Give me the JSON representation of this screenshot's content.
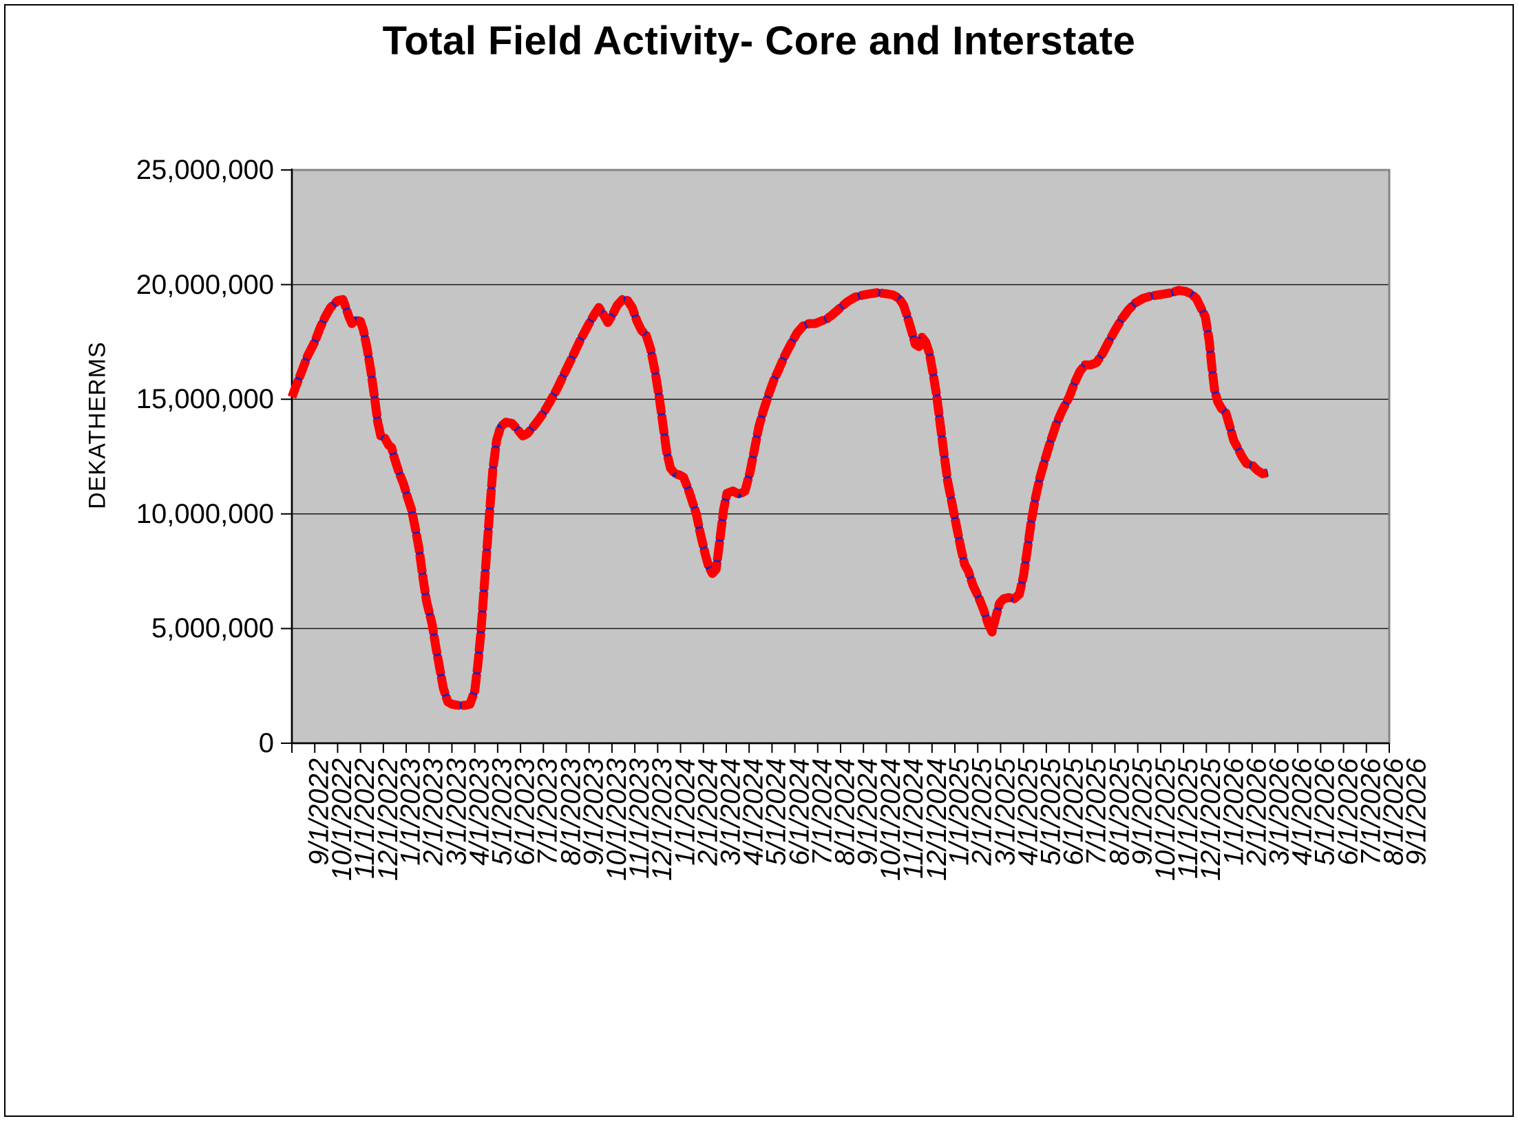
{
  "chart_data": {
    "type": "line",
    "title": "Total Field Activity- Core and Interstate",
    "ylabel": "DEKATHERMS",
    "xlabel": "",
    "ylim": [
      0,
      25000000
    ],
    "grid": true,
    "legend": "none",
    "plot_bg_color": "#c5c5c5",
    "gridline_color": "#1a1a1a",
    "y_ticks": {
      "values": [
        0,
        5000000,
        10000000,
        15000000,
        20000000,
        25000000
      ],
      "labels": [
        "0",
        "5,000,000",
        "10,000,000",
        "15,000,000",
        "20,000,000",
        "25,000,000"
      ]
    },
    "x_ticks": {
      "labels": [
        "9/1/2022",
        "10/1/2022",
        "11/1/2022",
        "12/1/2022",
        "1/1/2023",
        "2/1/2023",
        "3/1/2023",
        "4/1/2023",
        "5/1/2023",
        "6/1/2023",
        "7/1/2023",
        "8/1/2023",
        "9/1/2023",
        "10/1/2023",
        "11/1/2023",
        "12/1/2023",
        "1/1/2024",
        "2/1/2024",
        "3/1/2024",
        "4/1/2024",
        "5/1/2024",
        "6/1/2024",
        "7/1/2024",
        "8/1/2024",
        "9/1/2024",
        "10/1/2024",
        "11/1/2024",
        "12/1/2024",
        "1/1/2025",
        "2/1/2025",
        "3/1/2025",
        "4/1/2025",
        "5/1/2025",
        "6/1/2025",
        "7/1/2025",
        "8/1/2025",
        "9/1/2025",
        "10/1/2025",
        "11/1/2025",
        "12/1/2025",
        "1/1/2026",
        "2/1/2026",
        "3/1/2026",
        "4/1/2026",
        "5/1/2026",
        "6/1/2026",
        "7/1/2026",
        "8/1/2026",
        "9/1/2026"
      ]
    },
    "series": [
      {
        "name": "total-field-activity",
        "line_color": "#ff0000",
        "underlay_color": "#2222b2",
        "style": "thick red line with navy dashed underlay showing through",
        "points": [
          [
            "9/1/2022",
            15100000
          ],
          [
            "9/8/2022",
            15700000
          ],
          [
            "9/15/2022",
            16300000
          ],
          [
            "9/22/2022",
            16900000
          ],
          [
            "10/1/2022",
            17500000
          ],
          [
            "10/8/2022",
            18100000
          ],
          [
            "10/15/2022",
            18600000
          ],
          [
            "10/22/2022",
            19000000
          ],
          [
            "11/1/2022",
            19300000
          ],
          [
            "11/8/2022",
            19350000
          ],
          [
            "11/12/2022",
            19000000
          ],
          [
            "11/16/2022",
            18600000
          ],
          [
            "11/20/2022",
            18300000
          ],
          [
            "11/25/2022",
            18450000
          ],
          [
            "12/1/2022",
            18400000
          ],
          [
            "12/5/2022",
            18000000
          ],
          [
            "12/10/2022",
            17200000
          ],
          [
            "12/15/2022",
            16200000
          ],
          [
            "12/20/2022",
            15000000
          ],
          [
            "12/24/2022",
            14000000
          ],
          [
            "12/28/2022",
            13400000
          ],
          [
            "1/3/2023",
            13300000
          ],
          [
            "1/8/2023",
            13000000
          ],
          [
            "1/12/2023",
            12900000
          ],
          [
            "1/16/2023",
            12400000
          ],
          [
            "1/22/2023",
            11800000
          ],
          [
            "1/28/2023",
            11300000
          ],
          [
            "2/3/2023",
            10700000
          ],
          [
            "2/8/2023",
            10200000
          ],
          [
            "2/13/2023",
            9400000
          ],
          [
            "2/18/2023",
            8500000
          ],
          [
            "2/23/2023",
            7300000
          ],
          [
            "2/28/2023",
            6200000
          ],
          [
            "3/5/2023",
            5200000
          ],
          [
            "3/10/2023",
            4200000
          ],
          [
            "3/15/2023",
            3300000
          ],
          [
            "3/20/2023",
            2400000
          ],
          [
            "3/26/2023",
            1800000
          ],
          [
            "4/1/2023",
            1700000
          ],
          [
            "4/10/2023",
            1650000
          ],
          [
            "4/18/2023",
            1650000
          ],
          [
            "4/25/2023",
            1700000
          ],
          [
            "5/1/2023",
            2300000
          ],
          [
            "5/5/2023",
            3400000
          ],
          [
            "5/9/2023",
            4800000
          ],
          [
            "5/13/2023",
            6600000
          ],
          [
            "5/17/2023",
            8400000
          ],
          [
            "5/21/2023",
            10200000
          ],
          [
            "5/25/2023",
            11900000
          ],
          [
            "5/30/2023",
            13200000
          ],
          [
            "6/5/2023",
            13800000
          ],
          [
            "6/12/2023",
            14000000
          ],
          [
            "6/20/2023",
            13950000
          ],
          [
            "6/27/2023",
            13700000
          ],
          [
            "7/4/2023",
            13400000
          ],
          [
            "7/10/2023",
            13500000
          ],
          [
            "7/18/2023",
            13800000
          ],
          [
            "7/25/2023",
            14100000
          ],
          [
            "8/1/2023",
            14400000
          ],
          [
            "8/10/2023",
            14900000
          ],
          [
            "8/20/2023",
            15500000
          ],
          [
            "9/1/2023",
            16300000
          ],
          [
            "9/10/2023",
            16900000
          ],
          [
            "9/20/2023",
            17600000
          ],
          [
            "10/1/2023",
            18300000
          ],
          [
            "10/8/2023",
            18700000
          ],
          [
            "10/14/2023",
            19000000
          ],
          [
            "10/20/2023",
            18700000
          ],
          [
            "10/26/2023",
            18350000
          ],
          [
            "11/2/2023",
            18700000
          ],
          [
            "11/8/2023",
            19100000
          ],
          [
            "11/15/2023",
            19350000
          ],
          [
            "11/22/2023",
            19300000
          ],
          [
            "11/28/2023",
            19000000
          ],
          [
            "12/4/2023",
            18400000
          ],
          [
            "12/10/2023",
            18000000
          ],
          [
            "12/16/2023",
            17800000
          ],
          [
            "12/22/2023",
            17200000
          ],
          [
            "12/28/2023",
            16200000
          ],
          [
            "1/3/2024",
            15100000
          ],
          [
            "1/8/2024",
            13900000
          ],
          [
            "1/13/2024",
            12700000
          ],
          [
            "1/18/2024",
            12000000
          ],
          [
            "1/24/2024",
            11750000
          ],
          [
            "1/30/2024",
            11700000
          ],
          [
            "2/5/2024",
            11600000
          ],
          [
            "2/11/2024",
            11100000
          ],
          [
            "2/17/2024",
            10500000
          ],
          [
            "2/22/2024",
            10000000
          ],
          [
            "2/27/2024",
            9200000
          ],
          [
            "3/3/2024",
            8300000
          ],
          [
            "3/8/2024",
            7700000
          ],
          [
            "3/13/2024",
            7400000
          ],
          [
            "3/18/2024",
            7600000
          ],
          [
            "3/23/2024",
            8900000
          ],
          [
            "3/28/2024",
            10200000
          ],
          [
            "4/2/2024",
            10900000
          ],
          [
            "4/10/2024",
            11000000
          ],
          [
            "4/18/2024",
            10850000
          ],
          [
            "4/26/2024",
            11000000
          ],
          [
            "5/2/2024",
            11800000
          ],
          [
            "5/8/2024",
            12800000
          ],
          [
            "5/14/2024",
            13800000
          ],
          [
            "5/20/2024",
            14500000
          ],
          [
            "5/27/2024",
            15200000
          ],
          [
            "6/3/2024",
            15800000
          ],
          [
            "6/10/2024",
            16300000
          ],
          [
            "6/18/2024",
            16900000
          ],
          [
            "6/26/2024",
            17400000
          ],
          [
            "7/4/2024",
            17900000
          ],
          [
            "7/12/2024",
            18200000
          ],
          [
            "7/20/2024",
            18300000
          ],
          [
            "7/28/2024",
            18300000
          ],
          [
            "8/5/2024",
            18400000
          ],
          [
            "8/13/2024",
            18500000
          ],
          [
            "8/21/2024",
            18700000
          ],
          [
            "9/1/2024",
            19000000
          ],
          [
            "9/10/2024",
            19250000
          ],
          [
            "9/20/2024",
            19450000
          ],
          [
            "10/1/2024",
            19550000
          ],
          [
            "10/10/2024",
            19600000
          ],
          [
            "10/20/2024",
            19650000
          ],
          [
            "11/1/2024",
            19600000
          ],
          [
            "11/10/2024",
            19550000
          ],
          [
            "11/18/2024",
            19400000
          ],
          [
            "11/24/2024",
            19100000
          ],
          [
            "11/29/2024",
            18600000
          ],
          [
            "12/4/2024",
            18000000
          ],
          [
            "12/9/2024",
            17400000
          ],
          [
            "12/14/2024",
            17300000
          ],
          [
            "12/18/2024",
            17700000
          ],
          [
            "12/23/2024",
            17500000
          ],
          [
            "12/28/2024",
            17000000
          ],
          [
            "1/2/2025",
            16200000
          ],
          [
            "1/7/2025",
            15200000
          ],
          [
            "1/12/2025",
            13900000
          ],
          [
            "1/17/2025",
            12600000
          ],
          [
            "1/22/2025",
            11400000
          ],
          [
            "1/28/2025",
            10400000
          ],
          [
            "2/3/2025",
            9500000
          ],
          [
            "2/9/2025",
            8500000
          ],
          [
            "2/14/2025",
            7800000
          ],
          [
            "2/19/2025",
            7500000
          ],
          [
            "2/25/2025",
            6900000
          ],
          [
            "3/3/2025",
            6300000
          ],
          [
            "3/9/2025",
            5800000
          ],
          [
            "3/15/2025",
            5200000
          ],
          [
            "3/20/2025",
            4850000
          ],
          [
            "3/25/2025",
            5500000
          ],
          [
            "3/30/2025",
            6100000
          ],
          [
            "4/5/2025",
            6300000
          ],
          [
            "4/12/2025",
            6350000
          ],
          [
            "4/19/2025",
            6300000
          ],
          [
            "4/26/2025",
            6500000
          ],
          [
            "5/1/2025",
            7300000
          ],
          [
            "5/6/2025",
            8400000
          ],
          [
            "5/11/2025",
            9600000
          ],
          [
            "5/17/2025",
            10700000
          ],
          [
            "5/23/2025",
            11600000
          ],
          [
            "5/30/2025",
            12400000
          ],
          [
            "6/6/2025",
            13100000
          ],
          [
            "6/14/2025",
            13900000
          ],
          [
            "6/22/2025",
            14500000
          ],
          [
            "7/1/2025",
            15100000
          ],
          [
            "7/8/2025",
            15700000
          ],
          [
            "7/15/2025",
            16200000
          ],
          [
            "7/22/2025",
            16500000
          ],
          [
            "7/30/2025",
            16500000
          ],
          [
            "8/7/2025",
            16600000
          ],
          [
            "8/15/2025",
            17000000
          ],
          [
            "8/23/2025",
            17500000
          ],
          [
            "9/1/2025",
            18000000
          ],
          [
            "9/10/2025",
            18500000
          ],
          [
            "9/19/2025",
            18900000
          ],
          [
            "9/28/2025",
            19200000
          ],
          [
            "10/8/2025",
            19400000
          ],
          [
            "10/18/2025",
            19500000
          ],
          [
            "10/28/2025",
            19550000
          ],
          [
            "11/7/2025",
            19600000
          ],
          [
            "11/16/2025",
            19650000
          ],
          [
            "11/25/2025",
            19750000
          ],
          [
            "12/4/2025",
            19700000
          ],
          [
            "12/11/2025",
            19600000
          ],
          [
            "12/18/2025",
            19400000
          ],
          [
            "12/24/2025",
            19000000
          ],
          [
            "12/30/2025",
            18600000
          ],
          [
            "1/5/2026",
            17500000
          ],
          [
            "1/8/2026",
            16500000
          ],
          [
            "1/12/2026",
            15400000
          ],
          [
            "1/16/2026",
            14900000
          ],
          [
            "1/21/2026",
            14600000
          ],
          [
            "1/27/2026",
            14400000
          ],
          [
            "2/2/2026",
            13800000
          ],
          [
            "2/7/2026",
            13200000
          ],
          [
            "2/12/2026",
            12900000
          ],
          [
            "2/18/2026",
            12500000
          ],
          [
            "2/24/2026",
            12200000
          ],
          [
            "3/2/2026",
            12100000
          ],
          [
            "3/8/2026",
            11900000
          ],
          [
            "3/15/2026",
            11750000
          ],
          [
            "3/22/2026",
            11800000
          ]
        ]
      }
    ]
  }
}
